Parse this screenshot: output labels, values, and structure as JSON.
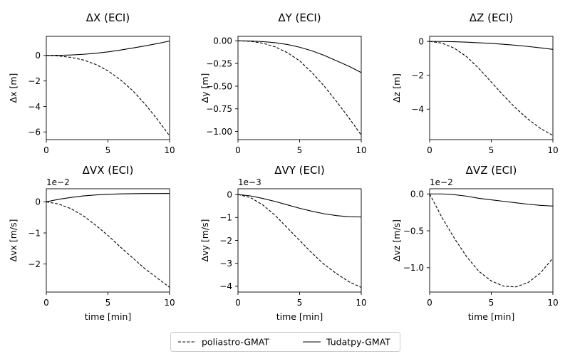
{
  "legend": {
    "entries": [
      {
        "label": "poliastro-GMAT",
        "style": "dashed"
      },
      {
        "label": "Tudatpy-GMAT",
        "style": "solid"
      }
    ],
    "placement": "bottom-center"
  },
  "chart_data": [
    {
      "type": "line",
      "title": "ΔX (ECI)",
      "xlabel": "",
      "ylabel": "Δx [m]",
      "xlim": [
        0,
        10
      ],
      "ylim": [
        -6.6,
        1.5
      ],
      "xticks": [
        0,
        5,
        10
      ],
      "xtick_labels": [
        "0",
        "5",
        "10"
      ],
      "yticks": [
        0,
        -2,
        -4,
        -6
      ],
      "ytick_labels": [
        "0",
        "−2",
        "−4",
        "−6"
      ],
      "offset_label": "",
      "x": [
        0,
        1,
        2,
        3,
        4,
        5,
        6,
        7,
        8,
        9,
        10
      ],
      "series": [
        {
          "name": "poliastro-GMAT",
          "values": [
            0,
            -0.04,
            -0.15,
            -0.35,
            -0.7,
            -1.2,
            -1.9,
            -2.75,
            -3.8,
            -5.0,
            -6.3
          ]
        },
        {
          "name": "Tudatpy-GMAT",
          "values": [
            0,
            0.01,
            0.04,
            0.09,
            0.17,
            0.28,
            0.42,
            0.58,
            0.75,
            0.93,
            1.13
          ]
        }
      ]
    },
    {
      "type": "line",
      "title": "ΔY (ECI)",
      "xlabel": "",
      "ylabel": "Δy [m]",
      "xlim": [
        0,
        10
      ],
      "ylim": [
        -1.09,
        0.05
      ],
      "xticks": [
        0,
        5,
        10
      ],
      "xtick_labels": [
        "0",
        "5",
        "10"
      ],
      "yticks": [
        0,
        -0.25,
        -0.5,
        -0.75,
        -1.0
      ],
      "ytick_labels": [
        "0.00",
        "−0.25",
        "−0.50",
        "−0.75",
        "−1.00"
      ],
      "offset_label": "",
      "x": [
        0,
        1,
        2,
        3,
        4,
        5,
        6,
        7,
        8,
        9,
        10
      ],
      "series": [
        {
          "name": "poliastro-GMAT",
          "values": [
            0,
            -0.005,
            -0.025,
            -0.065,
            -0.13,
            -0.22,
            -0.35,
            -0.5,
            -0.67,
            -0.85,
            -1.04
          ]
        },
        {
          "name": "Tudatpy-GMAT",
          "values": [
            0,
            -0.002,
            -0.008,
            -0.02,
            -0.04,
            -0.07,
            -0.11,
            -0.16,
            -0.22,
            -0.28,
            -0.35
          ]
        }
      ]
    },
    {
      "type": "line",
      "title": "ΔZ (ECI)",
      "xlabel": "",
      "ylabel": "Δz [m]",
      "xlim": [
        0,
        10
      ],
      "ylim": [
        -5.8,
        0.3
      ],
      "xticks": [
        0,
        5,
        10
      ],
      "xtick_labels": [
        "0",
        "5",
        "10"
      ],
      "yticks": [
        0,
        -2,
        -4
      ],
      "ytick_labels": [
        "0",
        "−2",
        "−4"
      ],
      "offset_label": "",
      "x": [
        0,
        1,
        2,
        3,
        4,
        5,
        6,
        7,
        8,
        9,
        10
      ],
      "series": [
        {
          "name": "poliastro-GMAT",
          "values": [
            0,
            -0.1,
            -0.4,
            -0.9,
            -1.6,
            -2.4,
            -3.2,
            -3.95,
            -4.6,
            -5.15,
            -5.55
          ]
        },
        {
          "name": "Tudatpy-GMAT",
          "values": [
            0,
            -0.005,
            -0.02,
            -0.045,
            -0.08,
            -0.12,
            -0.17,
            -0.23,
            -0.3,
            -0.38,
            -0.47
          ]
        }
      ]
    },
    {
      "type": "line",
      "title": "ΔVX (ECI)",
      "xlabel": "time [min]",
      "ylabel": "Δvx [m/s]",
      "xlim": [
        0,
        10
      ],
      "ylim": [
        -2.9,
        0.42
      ],
      "xticks": [
        0,
        5,
        10
      ],
      "xtick_labels": [
        "0",
        "5",
        "10"
      ],
      "yticks": [
        0,
        -1,
        -2
      ],
      "ytick_labels": [
        "0",
        "−1",
        "−2"
      ],
      "offset_label": "1e−2",
      "x": [
        0,
        1,
        2,
        3,
        4,
        5,
        6,
        7,
        8,
        9,
        10
      ],
      "series": [
        {
          "name": "poliastro-GMAT",
          "values": [
            0,
            -0.07,
            -0.22,
            -0.45,
            -0.75,
            -1.08,
            -1.45,
            -1.8,
            -2.15,
            -2.45,
            -2.75
          ]
        },
        {
          "name": "Tudatpy-GMAT",
          "values": [
            0,
            0.08,
            0.14,
            0.19,
            0.22,
            0.24,
            0.255,
            0.262,
            0.266,
            0.268,
            0.27
          ]
        }
      ]
    },
    {
      "type": "line",
      "title": "ΔVY (ECI)",
      "xlabel": "time [min]",
      "ylabel": "Δvy [m/s]",
      "xlim": [
        0,
        10
      ],
      "ylim": [
        -4.25,
        0.25
      ],
      "xticks": [
        0,
        5,
        10
      ],
      "xtick_labels": [
        "0",
        "5",
        "10"
      ],
      "yticks": [
        0,
        -1,
        -2,
        -3,
        -4
      ],
      "ytick_labels": [
        "0",
        "−1",
        "−2",
        "−3",
        "−4"
      ],
      "offset_label": "1e−3",
      "x": [
        0,
        1,
        2,
        3,
        4,
        5,
        6,
        7,
        8,
        9,
        10
      ],
      "series": [
        {
          "name": "poliastro-GMAT",
          "values": [
            0,
            -0.13,
            -0.45,
            -0.9,
            -1.45,
            -2.0,
            -2.55,
            -3.05,
            -3.45,
            -3.8,
            -4.05
          ]
        },
        {
          "name": "Tudatpy-GMAT",
          "values": [
            0,
            -0.06,
            -0.17,
            -0.3,
            -0.45,
            -0.6,
            -0.73,
            -0.84,
            -0.92,
            -0.97,
            -0.98
          ]
        }
      ]
    },
    {
      "type": "line",
      "title": "ΔVZ (ECI)",
      "xlabel": "time [min]",
      "ylabel": "Δvz [m/s]",
      "xlim": [
        0,
        10
      ],
      "ylim": [
        -1.33,
        0.07
      ],
      "xticks": [
        0,
        5,
        10
      ],
      "xtick_labels": [
        "0",
        "5",
        "10"
      ],
      "yticks": [
        0,
        -0.5,
        -1.0
      ],
      "ytick_labels": [
        "0.0",
        "−0.5",
        "−1.0"
      ],
      "offset_label": "1e−2",
      "x": [
        0,
        1,
        2,
        3,
        4,
        5,
        6,
        7,
        8,
        9,
        10
      ],
      "series": [
        {
          "name": "poliastro-GMAT",
          "values": [
            0,
            -0.32,
            -0.6,
            -0.85,
            -1.05,
            -1.18,
            -1.25,
            -1.26,
            -1.2,
            -1.07,
            -0.87
          ]
        },
        {
          "name": "Tudatpy-GMAT",
          "values": [
            0,
            0.0,
            -0.01,
            -0.03,
            -0.06,
            -0.08,
            -0.1,
            -0.12,
            -0.14,
            -0.155,
            -0.165
          ]
        }
      ]
    }
  ]
}
